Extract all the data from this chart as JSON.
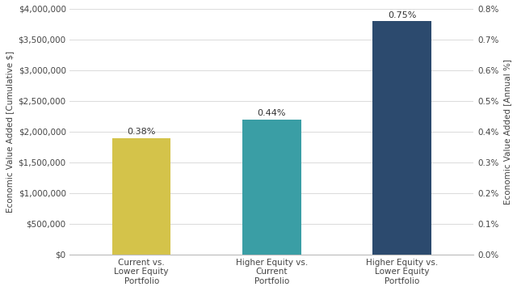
{
  "categories": [
    "Current vs.\nLower Equity\nPortfolio",
    "Higher Equity vs.\nCurrent\nPortfolio",
    "Higher Equity vs.\nLower Equity\nPortfolio"
  ],
  "values_cumulative": [
    1900000,
    2200000,
    3800000
  ],
  "bar_colors": [
    "#d4c34a",
    "#3a9ea5",
    "#2c4a6e"
  ],
  "bar_labels": [
    "0.38%",
    "0.44%",
    "0.75%"
  ],
  "ylabel_left": "Economic Value Added [Cumulative $]",
  "ylabel_right": "Economic Value Added [Annual %]",
  "ylim_left": [
    0,
    4000000
  ],
  "ylim_right": [
    0,
    0.008
  ],
  "yticks_left": [
    0,
    500000,
    1000000,
    1500000,
    2000000,
    2500000,
    3000000,
    3500000,
    4000000
  ],
  "ytick_labels_left": [
    "$0",
    "$500,000",
    "$1,000,000",
    "$1,500,000",
    "$2,000,000",
    "$2,500,000",
    "$3,000,000",
    "$3,500,000",
    "$4,000,000"
  ],
  "ytick_labels_right": [
    "0.0%",
    "0.1%",
    "0.2%",
    "0.3%",
    "0.4%",
    "0.5%",
    "0.6%",
    "0.7%",
    "0.8%"
  ],
  "background_color": "#ffffff",
  "grid_color": "#dddddd",
  "label_fontsize": 7.5,
  "tick_fontsize": 7.5,
  "bar_label_fontsize": 8
}
